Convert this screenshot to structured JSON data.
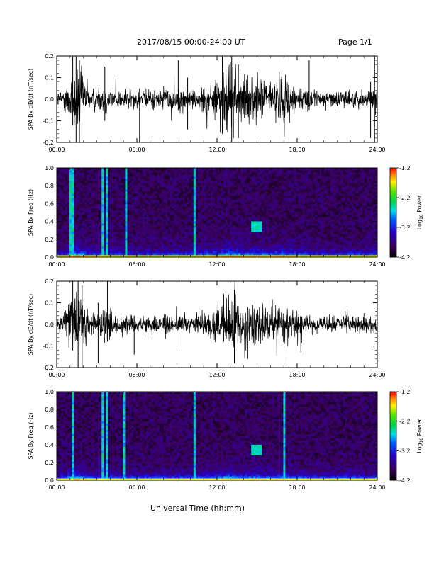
{
  "header": {
    "title": "2017/08/15  00:00-24:00 UT",
    "page": "Page 1/1"
  },
  "x_axis_label": "Universal Time (hh:mm)",
  "chart_data": [
    {
      "type": "line",
      "ylabel": "SPA Bx dB/dt (nT/sec)",
      "xlim": [
        "00:00",
        "24:00"
      ],
      "ylim": [
        -0.2,
        0.2
      ],
      "x_ticks": [
        "00:00",
        "06:00",
        "12:00",
        "18:00",
        "24:00"
      ],
      "y_ticks": [
        "-0.2",
        "-0.1",
        "0.0",
        "0.1",
        "0.2"
      ],
      "series": [
        {
          "x_hours": [
            0,
            0.5,
            1,
            1.5,
            2,
            2.5,
            3,
            3.5,
            4,
            4.5,
            5,
            5.5,
            6,
            6.5,
            7,
            7.5,
            8,
            8.5,
            9,
            9.5,
            10,
            10.5,
            11,
            11.5,
            12,
            12.5,
            13,
            13.5,
            14,
            14.5,
            15,
            15.5,
            16,
            16.5,
            17,
            17.5,
            18,
            18.5,
            19,
            19.5,
            20,
            20.5,
            21,
            21.5,
            22,
            22.5,
            23,
            23.5,
            24
          ],
          "amplitude_envelope": [
            0.03,
            0.05,
            0.12,
            0.2,
            0.12,
            0.06,
            0.06,
            0.08,
            0.07,
            0.05,
            0.05,
            0.05,
            0.04,
            0.04,
            0.05,
            0.05,
            0.05,
            0.06,
            0.05,
            0.05,
            0.05,
            0.05,
            0.07,
            0.08,
            0.1,
            0.15,
            0.2,
            0.15,
            0.1,
            0.1,
            0.12,
            0.1,
            0.08,
            0.12,
            0.13,
            0.1,
            0.07,
            0.05,
            0.05,
            0.04,
            0.04,
            0.04,
            0.04,
            0.04,
            0.04,
            0.04,
            0.04,
            0.05,
            0.08
          ]
        }
      ]
    },
    {
      "type": "heatmap",
      "ylabel": "SPA Bx Freq (Hz)",
      "xlim": [
        "00:00",
        "24:00"
      ],
      "ylim": [
        0.0,
        1.0
      ],
      "x_ticks": [
        "00:00",
        "06:00",
        "12:00",
        "18:00",
        "24:00"
      ],
      "y_ticks": [
        "0.0",
        "0.2",
        "0.4",
        "0.6",
        "0.8",
        "1.0"
      ],
      "colorbar": {
        "label": "Log10 Power",
        "ticks": [
          "-1.2",
          "-2.2",
          "-3.2",
          "-4.2"
        ],
        "range": [
          -4.2,
          -1.2
        ]
      }
    },
    {
      "type": "line",
      "ylabel": "SPA By dB/dt (nT/sec)",
      "xlim": [
        "00:00",
        "24:00"
      ],
      "ylim": [
        -0.2,
        0.2
      ],
      "x_ticks": [
        "00:00",
        "06:00",
        "12:00",
        "18:00",
        "24:00"
      ],
      "y_ticks": [
        "-0.2",
        "-0.1",
        "0.0",
        "0.1",
        "0.2"
      ],
      "series": [
        {
          "x_hours": [
            0,
            0.5,
            1,
            1.5,
            2,
            2.5,
            3,
            3.5,
            4,
            4.5,
            5,
            5.5,
            6,
            6.5,
            7,
            7.5,
            8,
            8.5,
            9,
            9.5,
            10,
            10.5,
            11,
            11.5,
            12,
            12.5,
            13,
            13.5,
            14,
            14.5,
            15,
            15.5,
            16,
            16.5,
            17,
            17.5,
            18,
            18.5,
            19,
            19.5,
            20,
            20.5,
            21,
            21.5,
            22,
            22.5,
            23,
            23.5,
            24
          ],
          "amplitude_envelope": [
            0.03,
            0.05,
            0.14,
            0.2,
            0.14,
            0.06,
            0.06,
            0.1,
            0.07,
            0.05,
            0.05,
            0.05,
            0.04,
            0.04,
            0.04,
            0.04,
            0.05,
            0.05,
            0.04,
            0.04,
            0.05,
            0.05,
            0.06,
            0.08,
            0.09,
            0.12,
            0.15,
            0.12,
            0.09,
            0.1,
            0.11,
            0.1,
            0.08,
            0.1,
            0.11,
            0.09,
            0.06,
            0.05,
            0.04,
            0.04,
            0.04,
            0.04,
            0.04,
            0.04,
            0.04,
            0.04,
            0.04,
            0.04,
            0.05
          ]
        }
      ]
    },
    {
      "type": "heatmap",
      "ylabel": "SPA By Freq (Hz)",
      "xlim": [
        "00:00",
        "24:00"
      ],
      "ylim": [
        0.0,
        1.0
      ],
      "x_ticks": [
        "00:00",
        "06:00",
        "12:00",
        "18:00",
        "24:00"
      ],
      "y_ticks": [
        "0.0",
        "0.2",
        "0.4",
        "0.6",
        "0.8",
        "1.0"
      ],
      "colorbar": {
        "label": "Log10 Power",
        "ticks": [
          "-1.2",
          "-2.2",
          "-3.2",
          "-4.2"
        ],
        "range": [
          -4.2,
          -1.2
        ]
      }
    }
  ]
}
